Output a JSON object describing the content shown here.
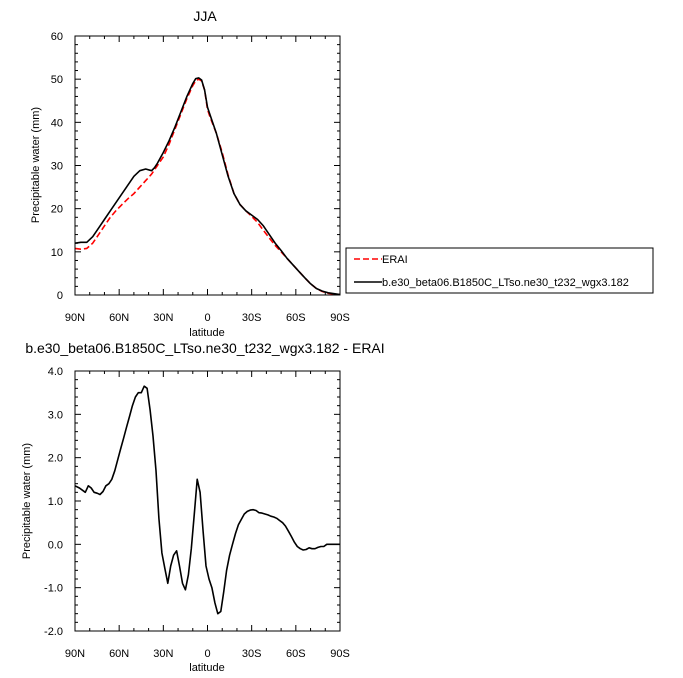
{
  "chart_data": [
    {
      "type": "line",
      "title": "JJA",
      "xlabel": "latitude",
      "ylabel": "Precipitable water (mm)",
      "x_ticks": [
        "90N",
        "60N",
        "30N",
        "0",
        "30S",
        "60S",
        "90S"
      ],
      "x_tick_values": [
        90,
        60,
        30,
        0,
        -30,
        -60,
        -90
      ],
      "y_ticks": [
        "0",
        "10",
        "20",
        "30",
        "40",
        "50",
        "60"
      ],
      "y_tick_values": [
        0,
        10,
        20,
        30,
        40,
        50,
        60
      ],
      "xlim": [
        90,
        -90
      ],
      "ylim": [
        0,
        60
      ],
      "legend_position": "right",
      "series": [
        {
          "name": "ERAI",
          "color": "#ff0000",
          "dash": "dashed",
          "x": [
            90,
            86,
            82,
            78,
            74,
            70,
            66,
            62,
            58,
            54,
            50,
            46,
            42,
            38,
            36,
            34,
            30,
            26,
            22,
            18,
            14,
            10,
            8,
            6,
            4,
            2,
            0,
            -2,
            -6,
            -10,
            -14,
            -18,
            -22,
            -26,
            -30,
            -34,
            -38,
            -42,
            -46,
            -50,
            -54,
            -58,
            -62,
            -66,
            -70,
            -74,
            -78,
            -82,
            -86,
            -90
          ],
          "y": [
            10.8,
            10.6,
            10.8,
            12.0,
            14.0,
            16.0,
            18.0,
            19.6,
            21.0,
            22.3,
            23.5,
            25.0,
            26.5,
            28.0,
            29.0,
            30.0,
            32.0,
            35.0,
            38.5,
            42.0,
            45.5,
            48.5,
            49.6,
            50.0,
            49.6,
            47.5,
            43.0,
            41.0,
            37.5,
            33.0,
            27.8,
            23.5,
            21.0,
            19.5,
            18.2,
            16.8,
            15.0,
            13.2,
            11.5,
            10.0,
            8.5,
            7.0,
            5.5,
            4.0,
            2.6,
            1.5,
            0.8,
            0.4,
            0.2,
            0.1
          ]
        },
        {
          "name": "b.e30_beta06.B1850C_LTso.ne30_t232_wgx3.182",
          "color": "#000000",
          "dash": "solid",
          "x": [
            90,
            86,
            82,
            78,
            74,
            70,
            66,
            62,
            58,
            54,
            50,
            46,
            42,
            38,
            36,
            34,
            30,
            26,
            22,
            18,
            14,
            10,
            8,
            6,
            4,
            2,
            0,
            -2,
            -6,
            -10,
            -14,
            -18,
            -22,
            -26,
            -30,
            -34,
            -38,
            -42,
            -46,
            -50,
            -54,
            -58,
            -62,
            -66,
            -70,
            -74,
            -78,
            -82,
            -86,
            -90
          ],
          "y": [
            12.0,
            12.2,
            12.2,
            13.5,
            15.5,
            17.5,
            19.5,
            21.5,
            23.5,
            25.5,
            27.5,
            28.8,
            29.2,
            28.8,
            29.5,
            30.5,
            33.0,
            35.8,
            39.0,
            42.5,
            46.0,
            49.0,
            50.1,
            50.3,
            49.8,
            47.5,
            43.5,
            41.5,
            37.5,
            32.5,
            27.5,
            23.5,
            21.0,
            19.5,
            18.5,
            17.5,
            16.0,
            14.0,
            12.0,
            10.3,
            8.5,
            7.0,
            5.5,
            4.0,
            2.6,
            1.5,
            0.9,
            0.5,
            0.3,
            0.1
          ]
        }
      ]
    },
    {
      "type": "line",
      "title": "b.e30_beta06.B1850C_LTso.ne30_t232_wgx3.182 - ERAI",
      "xlabel": "latitude",
      "ylabel": "Precipitable water (mm)",
      "x_ticks": [
        "90N",
        "60N",
        "30N",
        "0",
        "30S",
        "60S",
        "90S"
      ],
      "x_tick_values": [
        90,
        60,
        30,
        0,
        -30,
        -60,
        -90
      ],
      "y_ticks": [
        "-2.0",
        "-1.0",
        "0.0",
        "1.0",
        "2.0",
        "3.0",
        "4.0"
      ],
      "y_tick_values": [
        -2,
        -1,
        0,
        1,
        2,
        3,
        4
      ],
      "xlim": [
        90,
        -90
      ],
      "ylim": [
        -2,
        4
      ],
      "series": [
        {
          "name": "",
          "color": "#000000",
          "dash": "solid",
          "x": [
            90,
            87,
            85,
            83,
            81,
            79,
            77,
            75,
            73,
            71,
            69,
            67,
            65,
            63,
            61,
            59,
            57,
            55,
            53,
            51,
            49,
            47,
            45,
            43,
            41,
            39,
            37,
            35,
            33,
            31,
            29,
            27,
            25,
            23,
            21,
            19,
            17,
            15,
            13,
            11,
            9,
            7,
            5,
            3,
            1,
            -1,
            -3,
            -5,
            -7,
            -9,
            -11,
            -13,
            -15,
            -17,
            -19,
            -21,
            -23,
            -25,
            -27,
            -29,
            -31,
            -33,
            -35,
            -37,
            -39,
            -41,
            -43,
            -45,
            -47,
            -49,
            -51,
            -53,
            -55,
            -57,
            -59,
            -61,
            -63,
            -65,
            -67,
            -69,
            -71,
            -73,
            -75,
            -77,
            -79,
            -81,
            -83,
            -85,
            -87,
            -90
          ],
          "y": [
            1.35,
            1.3,
            1.25,
            1.2,
            1.35,
            1.3,
            1.2,
            1.18,
            1.15,
            1.22,
            1.35,
            1.4,
            1.5,
            1.7,
            1.95,
            2.2,
            2.45,
            2.7,
            2.95,
            3.2,
            3.4,
            3.5,
            3.5,
            3.65,
            3.6,
            3.1,
            2.5,
            1.7,
            0.6,
            -0.2,
            -0.55,
            -0.9,
            -0.5,
            -0.25,
            -0.15,
            -0.5,
            -0.9,
            -1.05,
            -0.7,
            -0.1,
            0.7,
            1.5,
            1.2,
            0.3,
            -0.5,
            -0.8,
            -1.0,
            -1.35,
            -1.6,
            -1.55,
            -1.1,
            -0.6,
            -0.25,
            0.0,
            0.25,
            0.45,
            0.58,
            0.7,
            0.76,
            0.79,
            0.8,
            0.78,
            0.73,
            0.72,
            0.7,
            0.68,
            0.65,
            0.63,
            0.6,
            0.55,
            0.5,
            0.42,
            0.3,
            0.18,
            0.05,
            -0.05,
            -0.1,
            -0.13,
            -0.12,
            -0.08,
            -0.1,
            -0.1,
            -0.07,
            -0.05,
            -0.05,
            0.0,
            0.0,
            0.0,
            0.0,
            0.0
          ]
        }
      ]
    }
  ]
}
